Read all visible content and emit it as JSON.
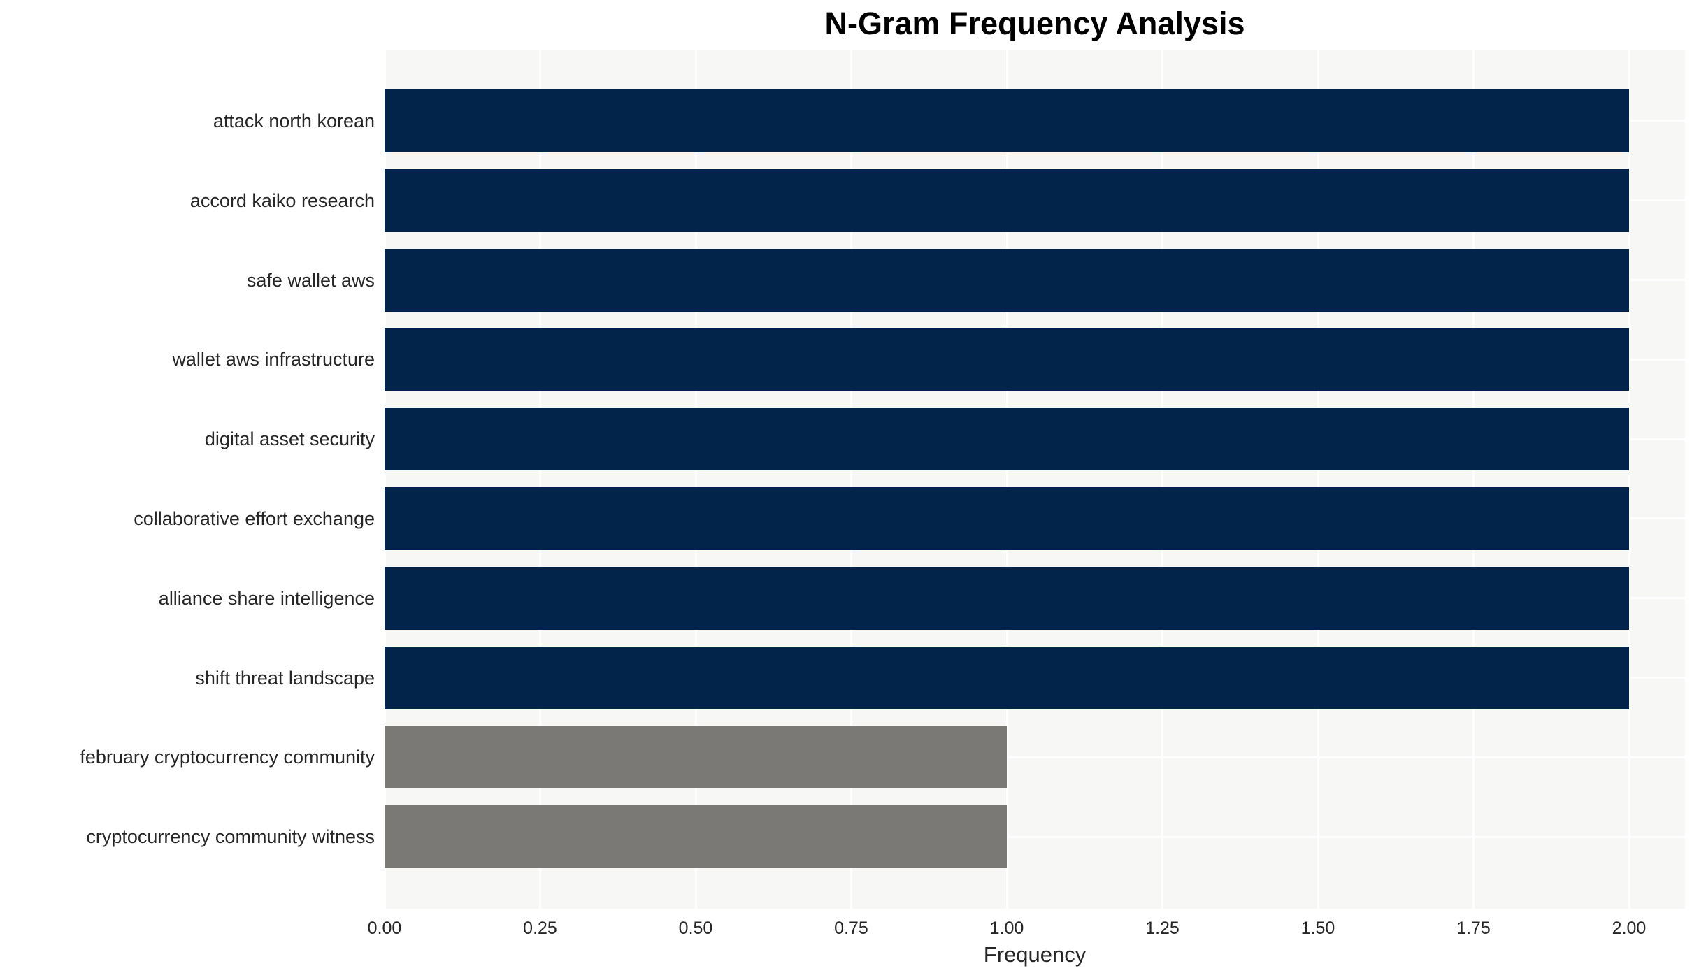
{
  "chart_data": {
    "type": "bar",
    "orientation": "horizontal",
    "title": "N-Gram Frequency Analysis",
    "xlabel": "Frequency",
    "ylabel": "",
    "categories": [
      "attack north korean",
      "accord kaiko research",
      "safe wallet aws",
      "wallet aws infrastructure",
      "digital asset security",
      "collaborative effort exchange",
      "alliance share intelligence",
      "shift threat landscape",
      "february cryptocurrency community",
      "cryptocurrency community witness"
    ],
    "values": [
      2,
      2,
      2,
      2,
      2,
      2,
      2,
      2,
      1,
      1
    ],
    "bar_colors": [
      "#02234a",
      "#02234a",
      "#02234a",
      "#02234a",
      "#02234a",
      "#02234a",
      "#02234a",
      "#02234a",
      "#7b7975",
      "#7b7975"
    ],
    "xlim": [
      0,
      2.09
    ],
    "xticks": [
      0,
      0.25,
      0.5,
      0.75,
      1.0,
      1.25,
      1.5,
      1.75,
      2.0
    ],
    "xtick_labels": [
      "0.00",
      "0.25",
      "0.50",
      "0.75",
      "1.00",
      "1.25",
      "1.50",
      "1.75",
      "2.00"
    ],
    "grid": true,
    "legend_position": "none",
    "colors": {
      "plot_background": "#f7f7f6",
      "grid_line": "#ffffff",
      "axis_text": "#262626",
      "title_text": "#000000",
      "bar_primary": "#02234a",
      "bar_secondary": "#7b7975"
    }
  }
}
